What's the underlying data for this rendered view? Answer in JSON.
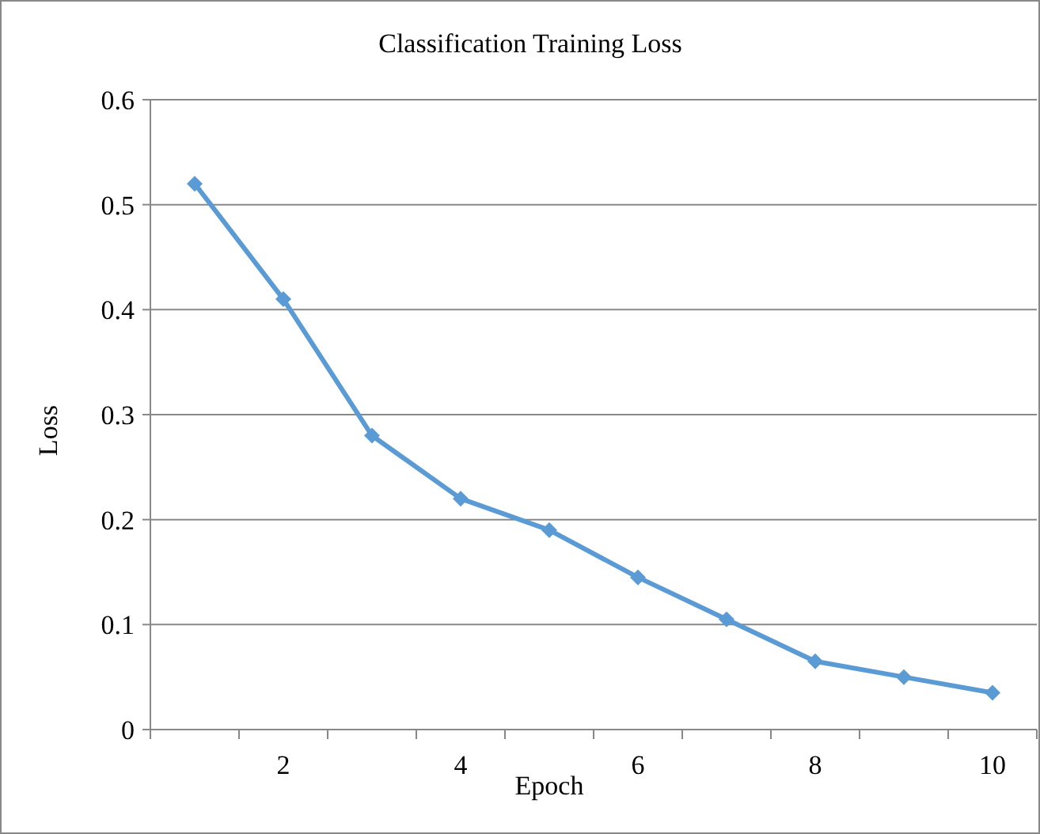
{
  "chart_data": {
    "type": "line",
    "title": "Classification  Training Loss",
    "xlabel": "Epoch",
    "ylabel": "Loss",
    "categories": [
      null,
      "2",
      null,
      "4",
      null,
      "6",
      null,
      "8",
      null,
      "10"
    ],
    "series": [
      {
        "color": "#5b9bd5",
        "values": [
          0.52,
          0.41,
          0.28,
          0.22,
          0.19,
          0.145,
          0.105,
          0.065,
          0.05,
          0.035
        ]
      }
    ],
    "ylim": [
      0,
      0.6
    ],
    "yticks": [
      {
        "value": 0,
        "label": "0"
      },
      0.1,
      0.2,
      0.3,
      0.4,
      0.5,
      0.6
    ],
    "grid": "y",
    "marker": "diamond",
    "line_style": "solid"
  }
}
